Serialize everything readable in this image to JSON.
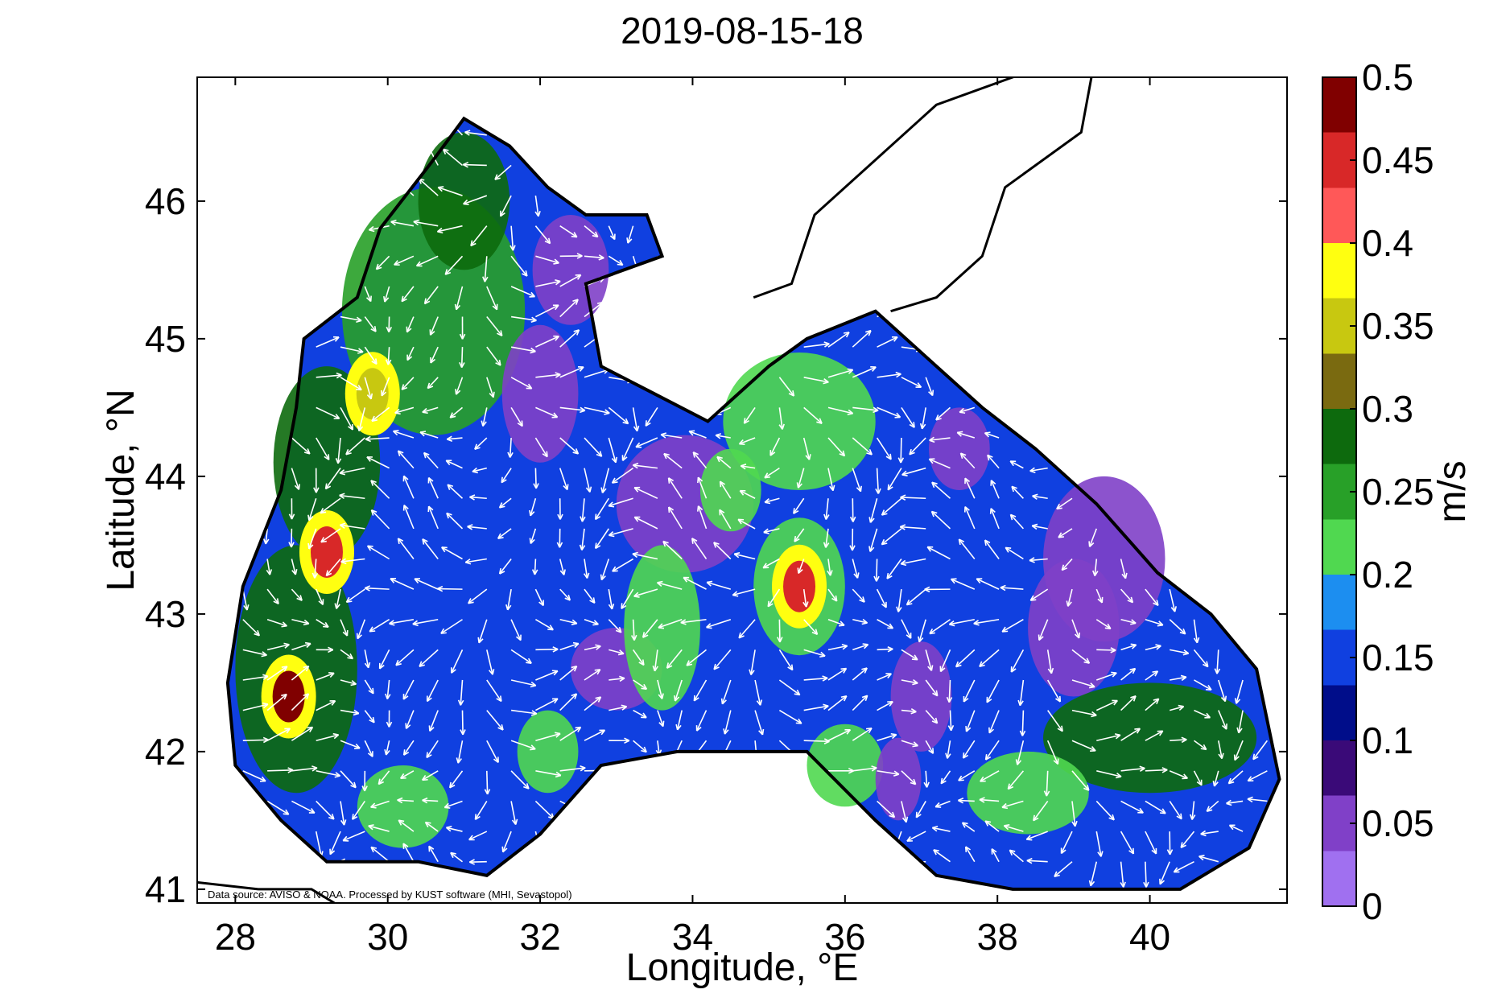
{
  "title": "2019-08-15-18",
  "xlabel": "Longitude, °E",
  "ylabel": "Latitude, °N",
  "credit": "Data source: AVISO & NOAA. Processed by KUST software (MHI, Sevastopol)",
  "lon_range": [
    27.5,
    41.8
  ],
  "lat_range": [
    40.9,
    46.9
  ],
  "x_ticks": [
    "28",
    "30",
    "32",
    "34",
    "36",
    "38",
    "40"
  ],
  "x_tick_values": [
    28,
    30,
    32,
    34,
    36,
    38,
    40
  ],
  "y_ticks": [
    "41",
    "42",
    "43",
    "44",
    "45",
    "46"
  ],
  "y_tick_values": [
    41,
    42,
    43,
    44,
    45,
    46
  ],
  "colorbar": {
    "label": "m/s",
    "range": [
      0,
      0.5
    ],
    "tick_labels": [
      "0",
      "0.05",
      "0.1",
      "0.15",
      "0.2",
      "0.25",
      "0.3",
      "0.35",
      "0.4",
      "0.45",
      "0.5"
    ],
    "tick_values": [
      0,
      0.05,
      0.1,
      0.15,
      0.2,
      0.25,
      0.3,
      0.35,
      0.4,
      0.45,
      0.5
    ],
    "colors": [
      "#a070f0",
      "#8040c8",
      "#3a0a78",
      "#000d8a",
      "#1040e0",
      "#1c8ef0",
      "#50d850",
      "#28a028",
      "#0d6a0d",
      "#7a6a10",
      "#c8c810",
      "#ffff10",
      "#ff5858",
      "#d82828",
      "#800000"
    ]
  },
  "colors": {
    "arrow": "#ffffff",
    "coastline": "#000000",
    "land": "#ffffff"
  },
  "hotspots": [
    {
      "name": "west-shelf-max-1",
      "lon": 29.2,
      "lat": 43.45,
      "speed": 0.45
    },
    {
      "name": "west-shelf-max-2",
      "lon": 28.7,
      "lat": 42.4,
      "speed": 0.47
    },
    {
      "name": "central-eddy-max",
      "lon": 35.4,
      "lat": 43.2,
      "speed": 0.45
    },
    {
      "name": "west-shelf-mid",
      "lon": 29.8,
      "lat": 44.6,
      "speed": 0.36
    }
  ]
}
